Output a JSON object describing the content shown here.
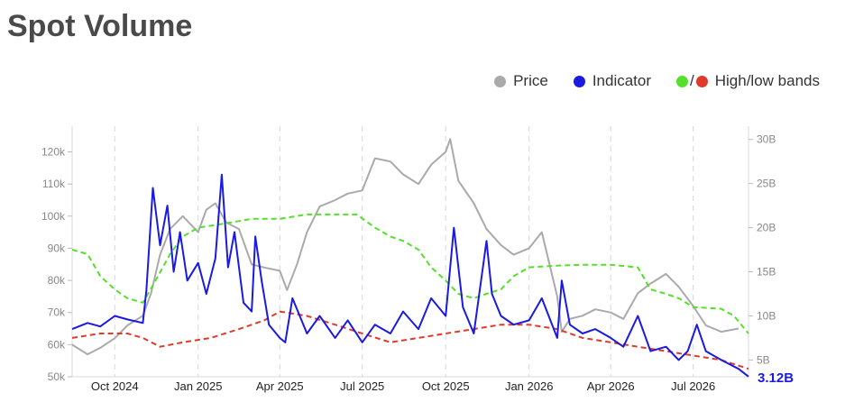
{
  "title": "Spot Volume",
  "legend": {
    "price": "Price",
    "indicator": "Indicator",
    "bands": "High/low bands",
    "band_separator": "/"
  },
  "colors": {
    "price": "#aaaaaa",
    "indicator": "#1a1ae0",
    "high_band": "#55e02a",
    "low_band": "#e03a2a",
    "grid": "#d8d8d8",
    "title": "#4a4a4a"
  },
  "last_value_label": "3.12B",
  "chart_data": {
    "type": "line",
    "x_ticks": [
      "Oct 2024",
      "Jan 2025",
      "Apr 2025",
      "Jul 2025",
      "Oct 2025",
      "Jan 2026",
      "Apr 2026",
      "Jul 2026"
    ],
    "x_tick_dates": [
      "2024-10-01",
      "2025-01-01",
      "2025-04-01",
      "2025-07-01",
      "2025-10-01",
      "2026-01-01",
      "2026-04-01",
      "2026-07-01"
    ],
    "x_range": [
      "2024-08-15",
      "2026-08-31"
    ],
    "y_left": {
      "ticks": [
        "50k",
        "60k",
        "70k",
        "80k",
        "90k",
        "100k",
        "110k",
        "120k"
      ],
      "tick_values": [
        50000,
        60000,
        70000,
        80000,
        90000,
        100000,
        110000,
        120000
      ],
      "range": [
        50000,
        128000
      ]
    },
    "y_right": {
      "ticks": [
        "5B",
        "10B",
        "15B",
        "20B",
        "25B",
        "30B"
      ],
      "tick_values": [
        5,
        10,
        15,
        20,
        25,
        30
      ],
      "range": [
        3.1,
        31.5
      ],
      "unit": "B"
    },
    "grid": "vertical dashed at x ticks",
    "legend_placement": "top-right",
    "series": [
      {
        "name": "Price",
        "axis": "left",
        "dates": [
          "2024-08-15",
          "2024-09-01",
          "2024-09-15",
          "2024-10-01",
          "2024-10-15",
          "2024-11-01",
          "2024-11-10",
          "2024-11-20",
          "2024-12-01",
          "2024-12-15",
          "2025-01-01",
          "2025-01-10",
          "2025-01-20",
          "2025-02-01",
          "2025-02-15",
          "2025-03-01",
          "2025-03-15",
          "2025-04-01",
          "2025-04-09",
          "2025-04-20",
          "2025-05-01",
          "2025-05-15",
          "2025-06-01",
          "2025-06-15",
          "2025-07-01",
          "2025-07-15",
          "2025-08-01",
          "2025-08-15",
          "2025-09-01",
          "2025-09-15",
          "2025-10-01",
          "2025-10-06",
          "2025-10-15",
          "2025-11-01",
          "2025-11-15",
          "2025-12-01",
          "2025-12-15",
          "2026-01-01",
          "2026-01-15",
          "2026-02-01",
          "2026-02-06",
          "2026-02-15",
          "2026-03-01",
          "2026-03-15",
          "2026-04-01",
          "2026-04-15",
          "2026-05-01",
          "2026-05-15",
          "2026-06-01",
          "2026-06-15",
          "2026-07-01",
          "2026-07-15",
          "2026-08-01",
          "2026-08-20"
        ],
        "values": [
          60000,
          57000,
          59000,
          62000,
          66000,
          69000,
          76000,
          88000,
          96000,
          100000,
          95000,
          102000,
          104000,
          98000,
          96000,
          85000,
          84000,
          83000,
          77000,
          85000,
          95000,
          103000,
          105000,
          107000,
          108000,
          118000,
          117000,
          113000,
          110000,
          116000,
          120000,
          124000,
          111000,
          104000,
          96000,
          91000,
          88000,
          90000,
          95000,
          75000,
          64000,
          68000,
          69000,
          71000,
          70000,
          68000,
          76000,
          79000,
          82000,
          78000,
          72000,
          66000,
          64000,
          65000
        ]
      },
      {
        "name": "Indicator",
        "axis": "right",
        "dates": [
          "2024-08-15",
          "2024-09-01",
          "2024-09-15",
          "2024-10-01",
          "2024-10-15",
          "2024-11-01",
          "2024-11-05",
          "2024-11-12",
          "2024-11-20",
          "2024-11-28",
          "2024-12-05",
          "2024-12-12",
          "2024-12-20",
          "2025-01-01",
          "2025-01-10",
          "2025-01-20",
          "2025-01-27",
          "2025-02-03",
          "2025-02-10",
          "2025-02-20",
          "2025-03-01",
          "2025-03-05",
          "2025-03-12",
          "2025-03-20",
          "2025-04-01",
          "2025-04-07",
          "2025-04-15",
          "2025-05-01",
          "2025-05-15",
          "2025-06-01",
          "2025-06-15",
          "2025-07-01",
          "2025-07-15",
          "2025-08-01",
          "2025-08-15",
          "2025-09-01",
          "2025-09-15",
          "2025-10-01",
          "2025-10-10",
          "2025-10-20",
          "2025-11-01",
          "2025-11-15",
          "2025-11-21",
          "2025-12-01",
          "2025-12-15",
          "2026-01-01",
          "2026-01-15",
          "2026-02-01",
          "2026-02-06",
          "2026-02-15",
          "2026-03-01",
          "2026-03-15",
          "2026-04-01",
          "2026-04-15",
          "2026-05-01",
          "2026-05-15",
          "2026-06-01",
          "2026-06-15",
          "2026-06-25",
          "2026-07-05",
          "2026-07-15",
          "2026-08-01",
          "2026-08-20",
          "2026-08-31"
        ],
        "values": [
          8.5,
          9.2,
          8.8,
          10.0,
          9.6,
          9.2,
          13.0,
          24.5,
          18.0,
          22.5,
          15.0,
          19.5,
          14.0,
          16.0,
          12.5,
          16.5,
          26.0,
          15.5,
          19.5,
          11.5,
          10.5,
          19.0,
          14.0,
          9.0,
          7.5,
          7.0,
          12.0,
          8.0,
          10.0,
          7.5,
          9.5,
          7.0,
          9.0,
          8.0,
          10.5,
          8.5,
          12.0,
          10.0,
          20.0,
          11.0,
          8.0,
          18.5,
          12.5,
          10.0,
          9.0,
          9.5,
          12.0,
          7.5,
          14.0,
          9.0,
          8.0,
          8.5,
          7.5,
          6.5,
          10.0,
          6.0,
          6.5,
          5.0,
          6.0,
          9.0,
          6.0,
          5.0,
          4.0,
          3.12
        ]
      },
      {
        "name": "High band",
        "axis": "right",
        "dates": [
          "2024-08-15",
          "2024-09-01",
          "2024-09-15",
          "2024-10-01",
          "2024-10-15",
          "2024-11-01",
          "2024-11-15",
          "2024-12-01",
          "2024-12-15",
          "2025-01-01",
          "2025-02-01",
          "2025-03-01",
          "2025-04-01",
          "2025-05-01",
          "2025-06-01",
          "2025-06-25",
          "2025-07-15",
          "2025-08-01",
          "2025-08-15",
          "2025-09-01",
          "2025-09-15",
          "2025-10-01",
          "2025-10-15",
          "2025-11-01",
          "2025-11-15",
          "2025-12-01",
          "2025-12-15",
          "2026-01-01",
          "2026-02-01",
          "2026-03-01",
          "2026-04-01",
          "2026-05-01",
          "2026-05-15",
          "2026-06-01",
          "2026-06-15",
          "2026-07-01",
          "2026-08-01",
          "2026-08-15",
          "2026-08-31"
        ],
        "values": [
          17.5,
          17.0,
          14.5,
          13.0,
          12.0,
          11.5,
          14.0,
          17.0,
          19.0,
          20.0,
          20.5,
          21.0,
          21.0,
          21.5,
          21.5,
          21.5,
          20.0,
          19.0,
          18.5,
          17.5,
          15.5,
          14.0,
          12.5,
          12.0,
          12.5,
          13.0,
          14.5,
          15.5,
          15.7,
          15.8,
          15.8,
          15.5,
          13.0,
          12.5,
          12.0,
          11.0,
          10.8,
          10.0,
          8.0
        ]
      },
      {
        "name": "Low band",
        "axis": "right",
        "dates": [
          "2024-08-15",
          "2024-09-15",
          "2024-10-15",
          "2024-11-01",
          "2024-11-20",
          "2024-12-15",
          "2025-01-15",
          "2025-02-15",
          "2025-03-15",
          "2025-04-01",
          "2025-05-01",
          "2025-06-01",
          "2025-07-01",
          "2025-08-01",
          "2025-09-01",
          "2025-10-01",
          "2025-11-01",
          "2025-12-01",
          "2026-01-01",
          "2026-02-01",
          "2026-03-01",
          "2026-04-01",
          "2026-05-01",
          "2026-06-01",
          "2026-07-01",
          "2026-08-01",
          "2026-08-31"
        ],
        "values": [
          7.5,
          8.0,
          8.0,
          7.5,
          6.5,
          7.0,
          7.5,
          8.5,
          9.5,
          10.5,
          10.0,
          9.0,
          8.0,
          7.0,
          7.5,
          8.0,
          8.5,
          9.0,
          9.0,
          8.5,
          7.5,
          7.0,
          6.5,
          6.0,
          5.5,
          5.0,
          4.0
        ]
      }
    ]
  }
}
